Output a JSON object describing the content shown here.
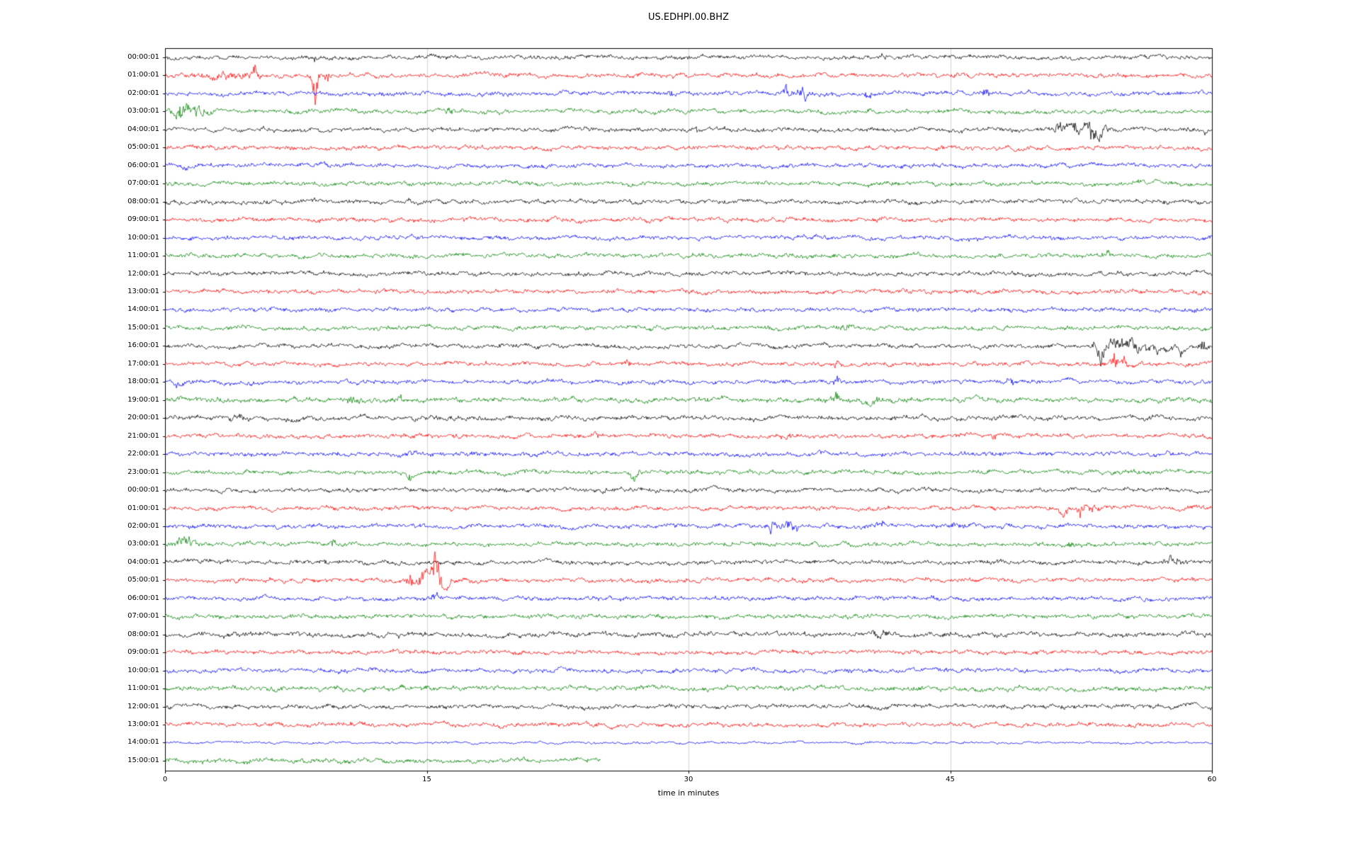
{
  "chart_data": {
    "type": "line",
    "subtype": "helicorder-dayplot",
    "title": "US.EDHPI.00.BHZ",
    "xlabel": "time in minutes",
    "xlim": [
      0,
      60
    ],
    "x_ticks": [
      0,
      15,
      30,
      45,
      60
    ],
    "x_tick_labels": [
      "0",
      "15",
      "30",
      "45",
      "60"
    ],
    "grid_x_minutes": [
      15,
      30,
      45
    ],
    "grid_color": "#cccccc",
    "trace_color_cycle": [
      "#000000",
      "#ff0000",
      "#0000ff",
      "#008000"
    ],
    "rows": [
      {
        "label": "00:00:01",
        "color": "#000000",
        "base_amp": 1.0,
        "end_minute": 60,
        "events": [
          {
            "t": 8.6,
            "amp": 1.5,
            "w": 0.1
          },
          {
            "t": 22.0,
            "amp": 0.8,
            "w": 0.3
          },
          {
            "t": 41.0,
            "amp": 0.6,
            "w": 0.3
          }
        ]
      },
      {
        "label": "01:00:01",
        "color": "#ff0000",
        "base_amp": 1.0,
        "end_minute": 60,
        "events": [
          {
            "t": 3.5,
            "amp": 1.2,
            "w": 1.5
          },
          {
            "t": 5.2,
            "amp": 2.0,
            "w": 0.3
          },
          {
            "t": 8.6,
            "amp": 9.0,
            "w": 0.18
          },
          {
            "t": 9.3,
            "amp": 2.0,
            "w": 0.3
          }
        ]
      },
      {
        "label": "02:00:01",
        "color": "#0000ff",
        "base_amp": 1.0,
        "end_minute": 60,
        "events": [
          {
            "t": 29.0,
            "amp": 0.8,
            "w": 0.2
          },
          {
            "t": 35.6,
            "amp": 3.5,
            "w": 0.25
          },
          {
            "t": 36.6,
            "amp": 3.0,
            "w": 0.35
          },
          {
            "t": 40.3,
            "amp": 1.2,
            "w": 0.3
          },
          {
            "t": 47.0,
            "amp": 1.0,
            "w": 0.3
          }
        ]
      },
      {
        "label": "03:00:01",
        "color": "#008000",
        "base_amp": 1.0,
        "end_minute": 60,
        "events": [
          {
            "t": 0.8,
            "amp": 2.5,
            "w": 0.5
          },
          {
            "t": 1.8,
            "amp": 2.2,
            "w": 0.8
          },
          {
            "t": 16.3,
            "amp": 1.8,
            "w": 0.25
          }
        ]
      },
      {
        "label": "04:00:01",
        "color": "#000000",
        "base_amp": 1.0,
        "end_minute": 60,
        "events": [
          {
            "t": 30.5,
            "amp": 1.5,
            "w": 0.15
          },
          {
            "t": 51.3,
            "amp": 2.2,
            "w": 0.4
          },
          {
            "t": 52.2,
            "amp": 2.2,
            "w": 0.3
          },
          {
            "t": 53.0,
            "amp": 8.0,
            "w": 0.22
          },
          {
            "t": 53.6,
            "amp": 3.0,
            "w": 0.3
          },
          {
            "t": 59.6,
            "amp": 1.2,
            "w": 0.2
          }
        ]
      },
      {
        "label": "05:00:01",
        "color": "#ff0000",
        "base_amp": 1.0,
        "end_minute": 60,
        "events": []
      },
      {
        "label": "06:00:01",
        "color": "#0000ff",
        "base_amp": 1.0,
        "end_minute": 60,
        "events": [
          {
            "t": 1.0,
            "amp": 0.8,
            "w": 0.3
          }
        ]
      },
      {
        "label": "07:00:01",
        "color": "#008000",
        "base_amp": 1.0,
        "end_minute": 60,
        "events": []
      },
      {
        "label": "08:00:01",
        "color": "#000000",
        "base_amp": 1.05,
        "end_minute": 60,
        "events": []
      },
      {
        "label": "09:00:01",
        "color": "#ff0000",
        "base_amp": 1.0,
        "end_minute": 60,
        "events": []
      },
      {
        "label": "10:00:01",
        "color": "#0000ff",
        "base_amp": 1.0,
        "end_minute": 60,
        "events": []
      },
      {
        "label": "11:00:01",
        "color": "#008000",
        "base_amp": 1.0,
        "end_minute": 60,
        "events": [
          {
            "t": 54.0,
            "amp": 1.0,
            "w": 0.4
          }
        ]
      },
      {
        "label": "12:00:01",
        "color": "#000000",
        "base_amp": 1.0,
        "end_minute": 60,
        "events": []
      },
      {
        "label": "13:00:01",
        "color": "#ff0000",
        "base_amp": 1.0,
        "end_minute": 60,
        "events": []
      },
      {
        "label": "14:00:01",
        "color": "#0000ff",
        "base_amp": 1.0,
        "end_minute": 60,
        "events": []
      },
      {
        "label": "15:00:01",
        "color": "#008000",
        "base_amp": 1.0,
        "end_minute": 60,
        "events": [
          {
            "t": 39.0,
            "amp": 0.9,
            "w": 0.4
          }
        ]
      },
      {
        "label": "16:00:01",
        "color": "#000000",
        "base_amp": 1.0,
        "end_minute": 60,
        "events": [
          {
            "t": 53.5,
            "amp": 9.0,
            "w": 0.25
          },
          {
            "t": 54.3,
            "amp": 4.0,
            "w": 0.5
          },
          {
            "t": 55.5,
            "amp": 2.0,
            "w": 0.8
          },
          {
            "t": 57.0,
            "amp": 1.5,
            "w": 0.8
          },
          {
            "t": 58.3,
            "amp": 2.5,
            "w": 0.2
          },
          {
            "t": 59.5,
            "amp": 3.0,
            "w": 0.2
          }
        ]
      },
      {
        "label": "17:00:01",
        "color": "#ff0000",
        "base_amp": 1.0,
        "end_minute": 60,
        "events": [
          {
            "t": 26.5,
            "amp": 1.5,
            "w": 0.12
          },
          {
            "t": 29.5,
            "amp": 1.2,
            "w": 0.12
          },
          {
            "t": 38.5,
            "amp": 1.2,
            "w": 0.15
          },
          {
            "t": 54.4,
            "amp": 3.5,
            "w": 0.2
          },
          {
            "t": 55.0,
            "amp": 2.0,
            "w": 0.15
          }
        ]
      },
      {
        "label": "18:00:01",
        "color": "#0000ff",
        "base_amp": 1.0,
        "end_minute": 60,
        "events": [
          {
            "t": 0.7,
            "amp": 1.5,
            "w": 0.3
          },
          {
            "t": 7.7,
            "amp": 2.5,
            "w": 0.15
          },
          {
            "t": 38.5,
            "amp": 1.5,
            "w": 0.2
          },
          {
            "t": 48.5,
            "amp": 1.2,
            "w": 0.25
          }
        ]
      },
      {
        "label": "19:00:01",
        "color": "#008000",
        "base_amp": 1.15,
        "end_minute": 60,
        "events": [
          {
            "t": 10.8,
            "amp": 1.3,
            "w": 0.3
          },
          {
            "t": 13.5,
            "amp": 1.2,
            "w": 0.3
          },
          {
            "t": 38.5,
            "amp": 1.2,
            "w": 0.3
          },
          {
            "t": 40.5,
            "amp": 1.0,
            "w": 0.3
          }
        ]
      },
      {
        "label": "20:00:01",
        "color": "#000000",
        "base_amp": 1.1,
        "end_minute": 60,
        "events": [
          {
            "t": 4.0,
            "amp": 0.9,
            "w": 0.4
          }
        ]
      },
      {
        "label": "21:00:01",
        "color": "#ff0000",
        "base_amp": 1.0,
        "end_minute": 60,
        "events": [
          {
            "t": 24.7,
            "amp": 1.8,
            "w": 0.15
          },
          {
            "t": 35.5,
            "amp": 1.0,
            "w": 0.4
          },
          {
            "t": 47.5,
            "amp": 2.2,
            "w": 0.15
          }
        ]
      },
      {
        "label": "22:00:01",
        "color": "#0000ff",
        "base_amp": 1.0,
        "end_minute": 60,
        "events": [
          {
            "t": 14.0,
            "amp": 1.2,
            "w": 0.25
          },
          {
            "t": 17.5,
            "amp": 1.0,
            "w": 0.3
          }
        ]
      },
      {
        "label": "23:00:01",
        "color": "#008000",
        "base_amp": 1.0,
        "end_minute": 60,
        "events": [
          {
            "t": 14.0,
            "amp": 1.3,
            "w": 0.3
          },
          {
            "t": 27.0,
            "amp": 2.2,
            "w": 0.3
          }
        ]
      },
      {
        "label": "00:00:01",
        "color": "#000000",
        "base_amp": 1.0,
        "end_minute": 60,
        "events": [
          {
            "t": 25.2,
            "amp": 1.6,
            "w": 0.12
          }
        ]
      },
      {
        "label": "01:00:01",
        "color": "#ff0000",
        "base_amp": 1.0,
        "end_minute": 60,
        "events": [
          {
            "t": 51.5,
            "amp": 2.5,
            "w": 0.25
          },
          {
            "t": 52.4,
            "amp": 3.0,
            "w": 0.2
          },
          {
            "t": 53.2,
            "amp": 2.0,
            "w": 0.3
          }
        ]
      },
      {
        "label": "02:00:01",
        "color": "#0000ff",
        "base_amp": 1.0,
        "end_minute": 60,
        "events": [
          {
            "t": 34.8,
            "amp": 2.8,
            "w": 0.3
          },
          {
            "t": 35.8,
            "amp": 2.2,
            "w": 0.4
          },
          {
            "t": 41.0,
            "amp": 1.2,
            "w": 0.3
          },
          {
            "t": 45.4,
            "amp": 2.8,
            "w": 0.25
          }
        ]
      },
      {
        "label": "03:00:01",
        "color": "#008000",
        "base_amp": 1.0,
        "end_minute": 60,
        "events": [
          {
            "t": 1.2,
            "amp": 2.8,
            "w": 0.5
          },
          {
            "t": 9.7,
            "amp": 1.2,
            "w": 0.2
          },
          {
            "t": 52.0,
            "amp": 1.4,
            "w": 0.2
          }
        ]
      },
      {
        "label": "04:00:01",
        "color": "#000000",
        "base_amp": 1.0,
        "end_minute": 60,
        "events": [
          {
            "t": 9.0,
            "amp": 1.1,
            "w": 0.2
          },
          {
            "t": 47.8,
            "amp": 1.6,
            "w": 0.12
          },
          {
            "t": 57.8,
            "amp": 1.5,
            "w": 0.5
          }
        ]
      },
      {
        "label": "05:00:01",
        "color": "#ff0000",
        "base_amp": 1.0,
        "end_minute": 60,
        "events": [
          {
            "t": 14.2,
            "amp": 2.5,
            "w": 0.3
          },
          {
            "t": 14.8,
            "amp": 3.5,
            "w": 0.25
          },
          {
            "t": 15.5,
            "amp": 11.0,
            "w": 0.25
          },
          {
            "t": 16.0,
            "amp": 3.0,
            "w": 0.4
          }
        ]
      },
      {
        "label": "06:00:01",
        "color": "#0000ff",
        "base_amp": 1.0,
        "end_minute": 60,
        "events": [
          {
            "t": 15.5,
            "amp": 1.2,
            "w": 0.3
          }
        ]
      },
      {
        "label": "07:00:01",
        "color": "#008000",
        "base_amp": 1.0,
        "end_minute": 60,
        "events": []
      },
      {
        "label": "08:00:01",
        "color": "#000000",
        "base_amp": 1.1,
        "end_minute": 60,
        "events": [
          {
            "t": 41.0,
            "amp": 0.9,
            "w": 0.5
          }
        ]
      },
      {
        "label": "09:00:01",
        "color": "#ff0000",
        "base_amp": 1.0,
        "end_minute": 60,
        "events": []
      },
      {
        "label": "10:00:01",
        "color": "#0000ff",
        "base_amp": 1.0,
        "end_minute": 60,
        "events": []
      },
      {
        "label": "11:00:01",
        "color": "#008000",
        "base_amp": 1.15,
        "end_minute": 60,
        "events": []
      },
      {
        "label": "12:00:01",
        "color": "#000000",
        "base_amp": 1.0,
        "end_minute": 60,
        "events": []
      },
      {
        "label": "13:00:01",
        "color": "#ff0000",
        "base_amp": 1.0,
        "end_minute": 60,
        "events": []
      },
      {
        "label": "14:00:01",
        "color": "#0000ff",
        "base_amp": 0.55,
        "end_minute": 60,
        "events": []
      },
      {
        "label": "15:00:01",
        "color": "#008000",
        "base_amp": 1.1,
        "end_minute": 25,
        "events": []
      }
    ]
  }
}
